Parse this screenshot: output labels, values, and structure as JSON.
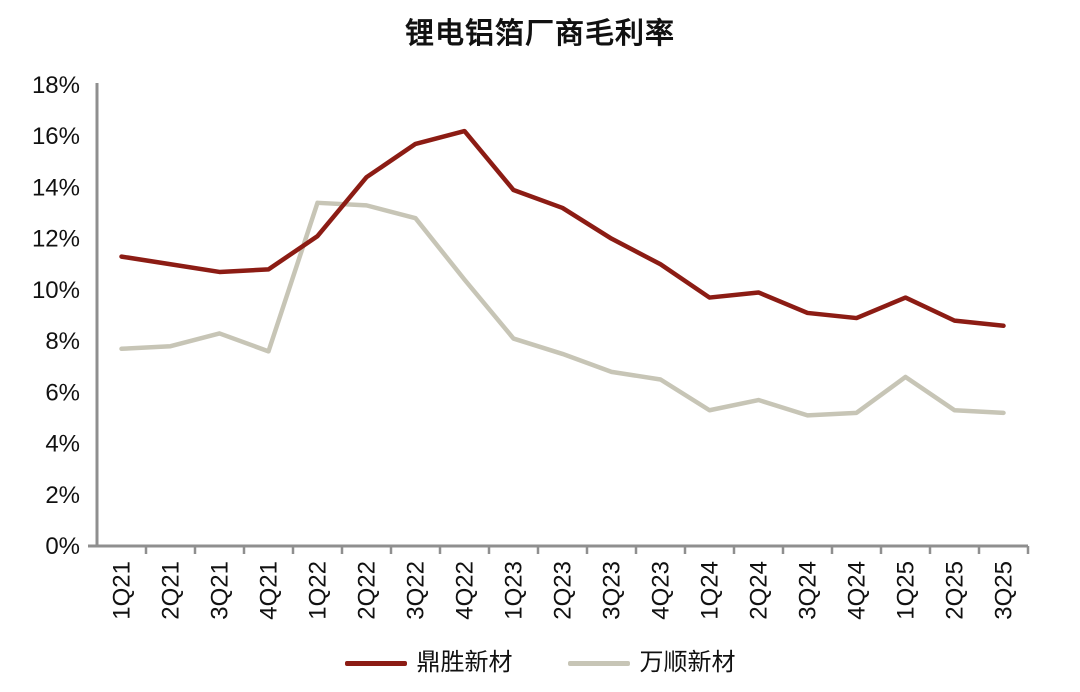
{
  "page": {
    "background": "#ffffff"
  },
  "chart_data": {
    "type": "line",
    "title": "锂电铝箔厂商毛利率",
    "categories": [
      "1Q21",
      "2Q21",
      "3Q21",
      "4Q21",
      "1Q22",
      "2Q22",
      "3Q22",
      "4Q22",
      "1Q23",
      "2Q23",
      "3Q23",
      "4Q23",
      "1Q24",
      "2Q24",
      "3Q24",
      "4Q24",
      "1Q25",
      "2Q25",
      "3Q25"
    ],
    "series": [
      {
        "name": "鼎胜新材",
        "color": "#8c1c14",
        "values": [
          11.3,
          11.0,
          10.7,
          10.8,
          12.1,
          14.4,
          15.7,
          16.2,
          13.9,
          13.2,
          12.0,
          11.0,
          9.7,
          9.9,
          9.1,
          8.9,
          9.7,
          8.8,
          8.6
        ]
      },
      {
        "name": "万顺新材",
        "color": "#c7c5b6",
        "values": [
          7.7,
          7.8,
          8.3,
          7.6,
          13.4,
          13.3,
          12.8,
          10.4,
          8.1,
          7.5,
          6.8,
          6.5,
          5.3,
          5.7,
          5.1,
          5.2,
          6.6,
          5.3,
          5.2
        ]
      }
    ],
    "y_axis": {
      "min": 0,
      "max": 18,
      "step": 2,
      "suffix": "%"
    },
    "x_axis": {
      "labels_rotated": true
    },
    "grid": false,
    "legend_position": "bottom",
    "axis_color": "#8f8f8f",
    "text_color": "#111111"
  }
}
